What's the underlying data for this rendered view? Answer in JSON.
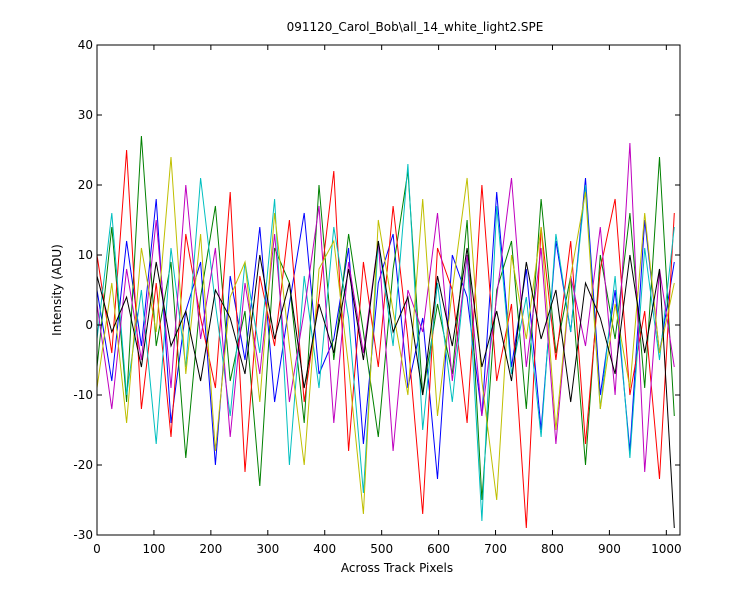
{
  "chart_data": {
    "type": "line",
    "title": "091120_Carol_Bob\\all_14_white_light2.SPE",
    "x_label": "Across Track Pixels",
    "y_label": "Intensity (ADU)",
    "x": [
      0,
      26,
      52,
      78,
      104,
      130,
      156,
      182,
      208,
      234,
      260,
      286,
      312,
      338,
      364,
      390,
      416,
      442,
      468,
      494,
      520,
      546,
      572,
      598,
      624,
      650,
      676,
      702,
      728,
      754,
      780,
      806,
      832,
      858,
      884,
      910,
      936,
      962,
      988,
      1014
    ],
    "series": [
      {
        "color": "#0000ff",
        "values": [
          5,
          -8,
          12,
          -3,
          18,
          -14,
          2,
          9,
          -20,
          7,
          -5,
          14,
          -11,
          3,
          16,
          -7,
          -2,
          11,
          -17,
          6,
          13,
          -9,
          1,
          -22,
          10,
          4,
          -13,
          19,
          -6,
          8,
          -15,
          12,
          -1,
          21,
          -10,
          5,
          -18,
          15,
          -4,
          9
        ]
      },
      {
        "color": "#008000",
        "values": [
          -6,
          14,
          -11,
          27,
          -3,
          9,
          -19,
          4,
          17,
          -8,
          2,
          -23,
          11,
          6,
          -14,
          20,
          -5,
          13,
          -1,
          -16,
          8,
          22,
          -10,
          3,
          -7,
          15,
          -25,
          5,
          12,
          -12,
          18,
          -4,
          7,
          -20,
          10,
          -2,
          16,
          -9,
          24,
          -13
        ]
      },
      {
        "color": "#ff0000",
        "values": [
          10,
          -4,
          25,
          -12,
          6,
          -16,
          13,
          1,
          -9,
          19,
          -21,
          7,
          -3,
          15,
          -11,
          4,
          22,
          -18,
          9,
          -6,
          17,
          -2,
          -27,
          11,
          5,
          -14,
          20,
          -8,
          3,
          -29,
          14,
          -5,
          12,
          -17,
          8,
          18,
          -10,
          2,
          -22,
          16
        ]
      },
      {
        "color": "#00bfbf",
        "values": [
          -2,
          16,
          -10,
          5,
          -17,
          11,
          -6,
          21,
          3,
          -13,
          9,
          -4,
          18,
          -20,
          7,
          -9,
          14,
          1,
          -24,
          12,
          -3,
          23,
          -15,
          6,
          -11,
          10,
          -28,
          17,
          -7,
          4,
          -16,
          13,
          -1,
          20,
          -12,
          7,
          -19,
          11,
          -5,
          14
        ]
      },
      {
        "color": "#bf00bf",
        "values": [
          3,
          -12,
          8,
          -5,
          15,
          -9,
          20,
          -2,
          11,
          -16,
          6,
          -7,
          13,
          -11,
          2,
          17,
          -14,
          9,
          -4,
          12,
          -18,
          5,
          -1,
          16,
          -8,
          10,
          -13,
          4,
          21,
          -6,
          11,
          -17,
          7,
          -3,
          14,
          -10,
          26,
          -21,
          8,
          -6
        ]
      },
      {
        "color": "#bfbf00",
        "values": [
          -9,
          6,
          -14,
          11,
          -1,
          24,
          -7,
          13,
          -18,
          4,
          9,
          -11,
          16,
          -3,
          -20,
          8,
          12,
          -6,
          -27,
          15,
          2,
          -10,
          18,
          -13,
          5,
          21,
          -8,
          -25,
          10,
          -2,
          14,
          -15,
          7,
          19,
          -12,
          3,
          -9,
          16,
          -4,
          6
        ]
      },
      {
        "color": "#000000",
        "values": [
          7,
          -1,
          4,
          -6,
          9,
          -3,
          2,
          -8,
          5,
          1,
          -7,
          10,
          -2,
          6,
          -9,
          3,
          -4,
          8,
          -5,
          12,
          -1,
          4,
          -10,
          7,
          -3,
          11,
          -6,
          2,
          -8,
          9,
          -2,
          5,
          -11,
          6,
          1,
          -7,
          10,
          -4,
          8,
          -29
        ]
      }
    ],
    "xlim": [
      0,
      1024
    ],
    "xticks": [
      0,
      100,
      200,
      300,
      400,
      500,
      600,
      700,
      800,
      900,
      1000
    ],
    "ylim": [
      -30,
      40
    ],
    "yticks": [
      -30,
      -20,
      -10,
      0,
      10,
      20,
      30,
      40
    ]
  }
}
